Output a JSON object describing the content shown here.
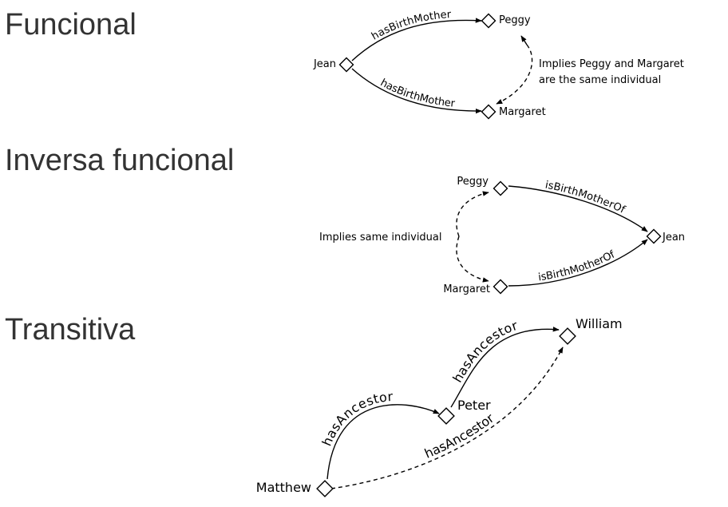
{
  "sections": {
    "functional": {
      "title": "Funcional",
      "nodes": {
        "jean": "Jean",
        "peggy": "Peggy",
        "margaret": "Margaret"
      },
      "edges": {
        "top": "hasBirthMother",
        "bottom": "hasBirthMother"
      },
      "note": {
        "line1": "Implies Peggy and Margaret",
        "line2": "are the same individual"
      }
    },
    "inverse_functional": {
      "title": "Inversa funcional",
      "nodes": {
        "peggy": "Peggy",
        "margaret": "Margaret",
        "jean": "Jean"
      },
      "edges": {
        "top": "isBirthMotherOf",
        "bottom": "isBirthMotherOf"
      },
      "note": "Implies same individual"
    },
    "transitive": {
      "title": "Transitiva",
      "nodes": {
        "matthew": "Matthew",
        "peter": "Peter",
        "william": "William"
      },
      "edges": {
        "matthew_peter": "hasAncestor",
        "peter_william": "hasAncestor",
        "matthew_william": "hasAncestor"
      }
    }
  }
}
